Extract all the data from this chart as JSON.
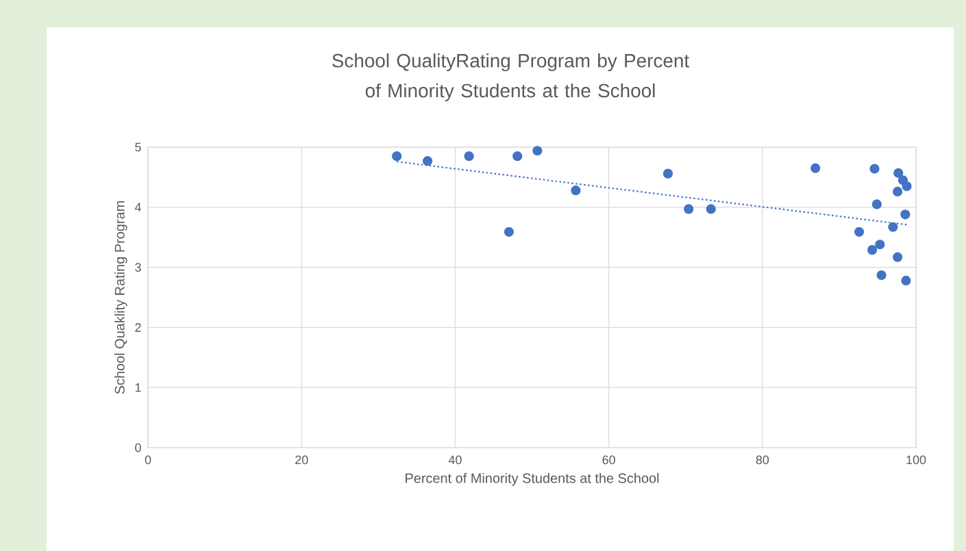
{
  "chart_data": {
    "type": "scatter",
    "title": "School QualityRating Program by Percent of Minority Students at the School",
    "xlabel": "Percent of Minority Students at the School",
    "ylabel": "School Quaklity Rating Program",
    "xlim": [
      0,
      100
    ],
    "ylim": [
      0,
      5
    ],
    "xticks": [
      0,
      20,
      40,
      60,
      80,
      100
    ],
    "yticks": [
      0,
      1,
      2,
      3,
      4,
      5
    ],
    "grid": true,
    "series": [
      {
        "color": "#4472c4",
        "marker": "circle",
        "x": [
          32.4,
          36.4,
          41.8,
          48.1,
          50.7,
          55.7,
          47.0,
          67.7,
          70.4,
          73.3,
          86.9,
          94.6,
          97.7,
          98.3,
          98.8,
          97.6,
          94.9,
          98.6,
          97.0,
          92.6,
          95.3,
          94.3,
          97.6,
          95.5,
          98.7
        ],
        "values": [
          4.85,
          4.77,
          4.85,
          4.85,
          4.94,
          4.28,
          3.59,
          4.56,
          3.97,
          3.97,
          4.65,
          4.64,
          4.57,
          4.45,
          4.35,
          4.26,
          4.05,
          3.88,
          3.67,
          3.59,
          3.38,
          3.29,
          3.17,
          2.87,
          2.78
        ]
      },
      {
        "type": "line",
        "color": "#4472c4",
        "line_style": "dotted",
        "marker": "none",
        "x": [
          32.4,
          98.8
        ],
        "values": [
          4.76,
          3.71
        ]
      }
    ]
  }
}
